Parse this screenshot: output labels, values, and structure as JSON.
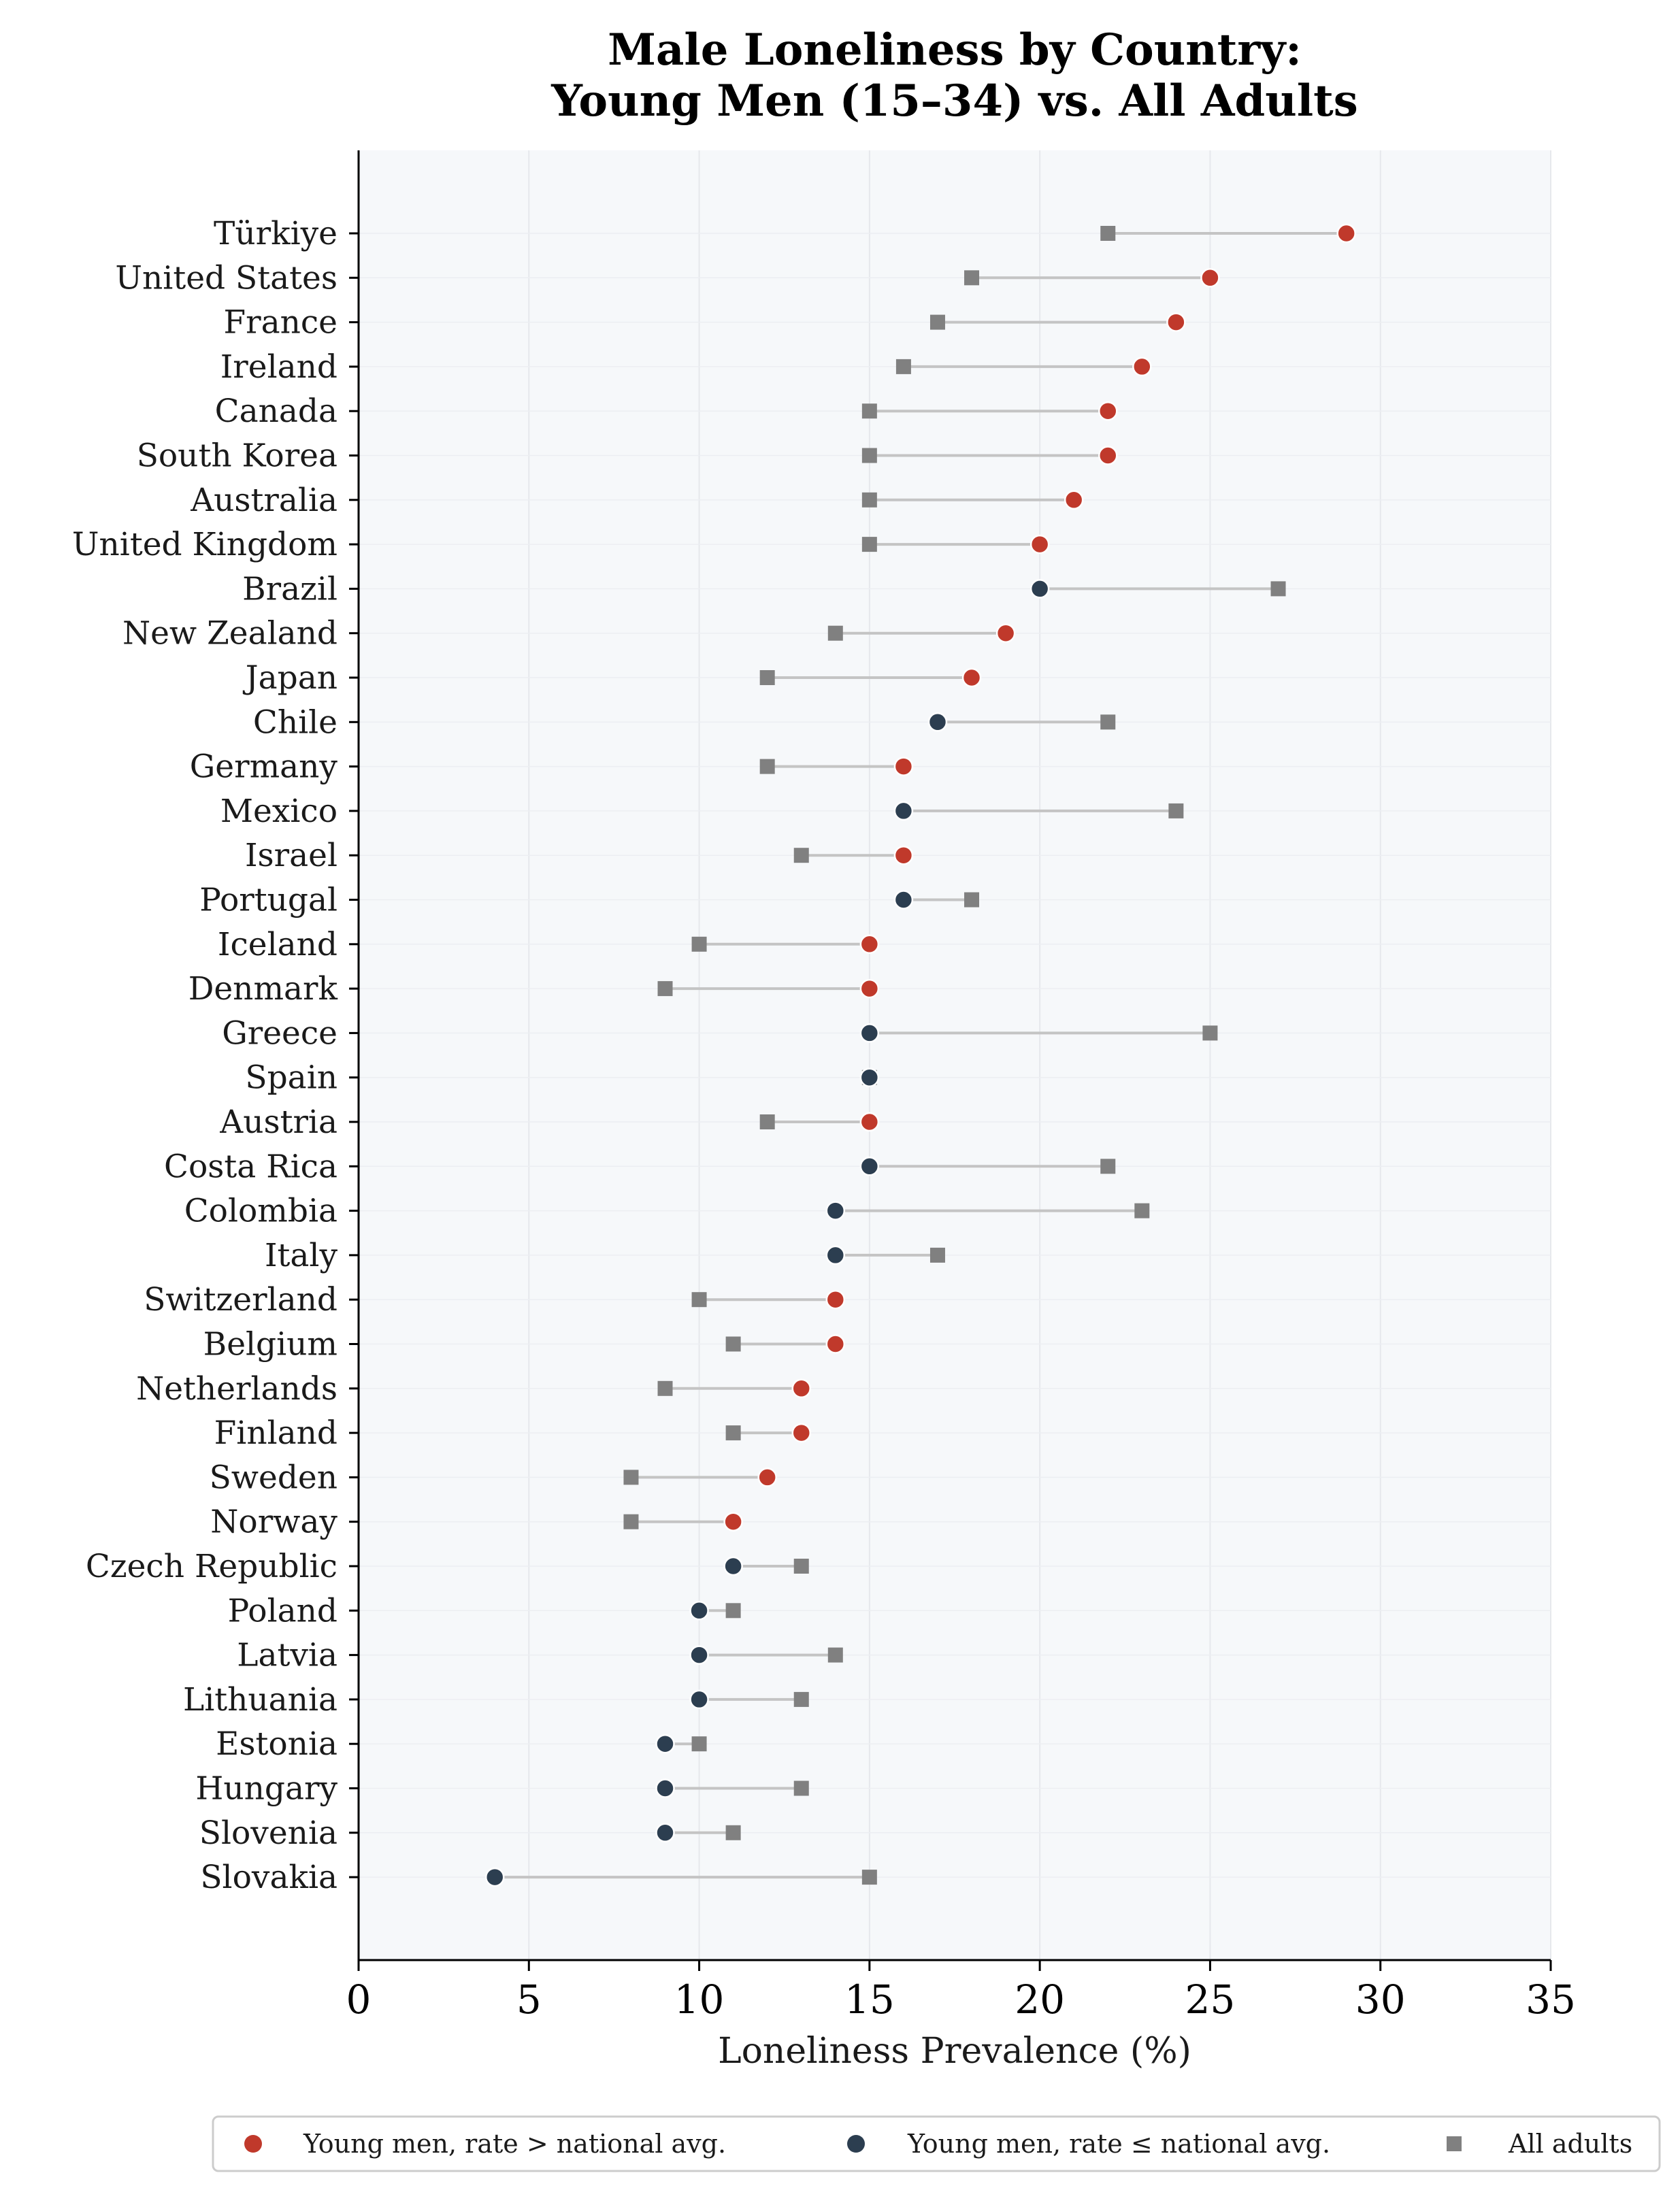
{
  "chart_data": {
    "type": "dumbbell",
    "title": [
      "Male Loneliness by Country:",
      "Young Men (15–34) vs. All Adults"
    ],
    "xlabel": "Loneliness Prevalence (%)",
    "ylabel": "",
    "xlim": [
      0,
      35
    ],
    "xticks": [
      0,
      5,
      10,
      15,
      20,
      25,
      30,
      35
    ],
    "grid": true,
    "legend_position": "bottom",
    "colors": {
      "young_above": "#c0392b",
      "young_below": "#2c3e50",
      "all_adults": "#808080",
      "connector": "#c4c4c4",
      "plot_bg": "#f6f8fa"
    },
    "legend": [
      {
        "key": "young_above",
        "label": "Young men, rate > national avg.",
        "marker": "circle"
      },
      {
        "key": "young_below",
        "label": "Young men, rate ≤ national avg.",
        "marker": "circle"
      },
      {
        "key": "all_adults",
        "label": "All adults",
        "marker": "square"
      }
    ],
    "series_names": [
      "Young men (15–34)",
      "All adults"
    ],
    "countries": [
      {
        "name": "Türkiye",
        "young_men": 29,
        "all_adults": 22
      },
      {
        "name": "United States",
        "young_men": 25,
        "all_adults": 18
      },
      {
        "name": "France",
        "young_men": 24,
        "all_adults": 17
      },
      {
        "name": "Ireland",
        "young_men": 23,
        "all_adults": 16
      },
      {
        "name": "Canada",
        "young_men": 22,
        "all_adults": 15
      },
      {
        "name": "South Korea",
        "young_men": 22,
        "all_adults": 15
      },
      {
        "name": "Australia",
        "young_men": 21,
        "all_adults": 15
      },
      {
        "name": "United Kingdom",
        "young_men": 20,
        "all_adults": 15
      },
      {
        "name": "Brazil",
        "young_men": 20,
        "all_adults": 27
      },
      {
        "name": "New Zealand",
        "young_men": 19,
        "all_adults": 14
      },
      {
        "name": "Japan",
        "young_men": 18,
        "all_adults": 12
      },
      {
        "name": "Chile",
        "young_men": 17,
        "all_adults": 22
      },
      {
        "name": "Germany",
        "young_men": 16,
        "all_adults": 12
      },
      {
        "name": "Mexico",
        "young_men": 16,
        "all_adults": 24
      },
      {
        "name": "Israel",
        "young_men": 16,
        "all_adults": 13
      },
      {
        "name": "Portugal",
        "young_men": 16,
        "all_adults": 18
      },
      {
        "name": "Iceland",
        "young_men": 15,
        "all_adults": 10
      },
      {
        "name": "Denmark",
        "young_men": 15,
        "all_adults": 9
      },
      {
        "name": "Greece",
        "young_men": 15,
        "all_adults": 25
      },
      {
        "name": "Spain",
        "young_men": 15,
        "all_adults": 15
      },
      {
        "name": "Austria",
        "young_men": 15,
        "all_adults": 12
      },
      {
        "name": "Costa Rica",
        "young_men": 15,
        "all_adults": 22
      },
      {
        "name": "Colombia",
        "young_men": 14,
        "all_adults": 23
      },
      {
        "name": "Italy",
        "young_men": 14,
        "all_adults": 17
      },
      {
        "name": "Switzerland",
        "young_men": 14,
        "all_adults": 10
      },
      {
        "name": "Belgium",
        "young_men": 14,
        "all_adults": 11
      },
      {
        "name": "Netherlands",
        "young_men": 13,
        "all_adults": 9
      },
      {
        "name": "Finland",
        "young_men": 13,
        "all_adults": 11
      },
      {
        "name": "Sweden",
        "young_men": 12,
        "all_adults": 8
      },
      {
        "name": "Norway",
        "young_men": 11,
        "all_adults": 8
      },
      {
        "name": "Czech Republic",
        "young_men": 11,
        "all_adults": 13
      },
      {
        "name": "Poland",
        "young_men": 10,
        "all_adults": 11
      },
      {
        "name": "Latvia",
        "young_men": 10,
        "all_adults": 14
      },
      {
        "name": "Lithuania",
        "young_men": 10,
        "all_adults": 13
      },
      {
        "name": "Estonia",
        "young_men": 9,
        "all_adults": 10
      },
      {
        "name": "Hungary",
        "young_men": 9,
        "all_adults": 13
      },
      {
        "name": "Slovenia",
        "young_men": 9,
        "all_adults": 11
      },
      {
        "name": "Slovakia",
        "young_men": 4,
        "all_adults": 15
      }
    ]
  }
}
